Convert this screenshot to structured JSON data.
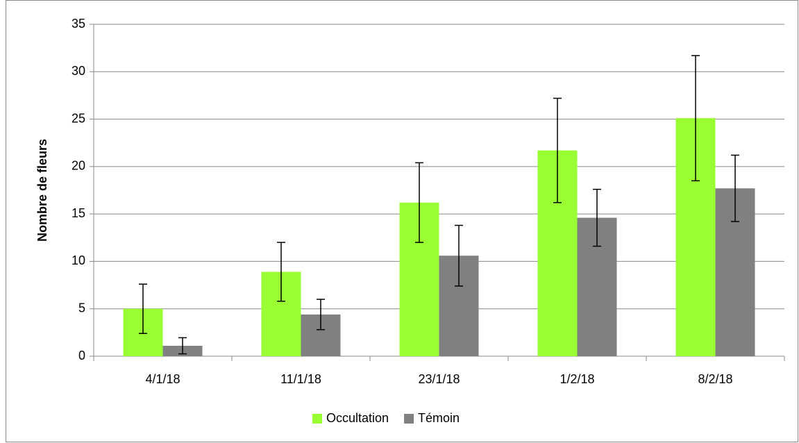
{
  "chart_data": {
    "type": "bar",
    "y_label": "Nombre de fleurs",
    "categories": [
      "4/1/18",
      "11/1/18",
      "23/1/18",
      "1/2/18",
      "8/2/18"
    ],
    "series": [
      {
        "name": "Occultation",
        "color": "#99ff33",
        "values": [
          5.0,
          8.9,
          16.2,
          21.7,
          25.1
        ],
        "errors": [
          2.6,
          3.1,
          4.2,
          5.5,
          6.6
        ]
      },
      {
        "name": "Témoin",
        "color": "#808080",
        "values": [
          1.1,
          4.4,
          10.6,
          14.6,
          17.7
        ],
        "errors": [
          0.85,
          1.6,
          3.2,
          3.0,
          3.5
        ]
      }
    ],
    "ylim": [
      0,
      35
    ],
    "yticks": [
      0,
      5,
      10,
      15,
      20,
      25,
      30,
      35
    ],
    "grid": true,
    "legend": "bottom"
  }
}
